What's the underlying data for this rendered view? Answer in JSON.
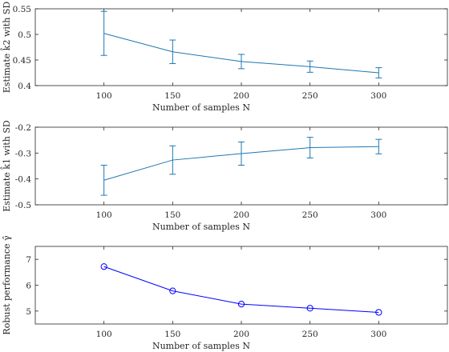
{
  "chart_data": [
    {
      "type": "line",
      "xlabel": "Number of samples N",
      "ylabel": "Estimate k̂2 with SD",
      "xlim": [
        50,
        350
      ],
      "ylim": [
        0.4,
        0.55
      ],
      "xticks": [
        100,
        150,
        200,
        250,
        300
      ],
      "yticks": [
        0.4,
        0.45,
        0.5,
        0.55
      ],
      "ytick_labels": [
        "0.4",
        "0.45",
        "0.5",
        "0.55"
      ],
      "x": [
        100,
        150,
        200,
        250,
        300
      ],
      "y": [
        0.502,
        0.466,
        0.447,
        0.437,
        0.425
      ],
      "sd": [
        0.043,
        0.023,
        0.014,
        0.011,
        0.01
      ],
      "errorbars": true,
      "marker": "none",
      "color": "#1f77b4",
      "grid": false,
      "legend": "none"
    },
    {
      "type": "line",
      "xlabel": "Number of samples N",
      "ylabel": "Estimate k̂1 with SD",
      "xlim": [
        50,
        350
      ],
      "ylim": [
        -0.5,
        -0.2
      ],
      "xticks": [
        100,
        150,
        200,
        250,
        300
      ],
      "yticks": [
        -0.5,
        -0.4,
        -0.3,
        -0.2
      ],
      "ytick_labels": [
        "-0.5",
        "-0.4",
        "-0.3",
        "-0.2"
      ],
      "x": [
        100,
        150,
        200,
        250,
        300
      ],
      "y": [
        -0.405,
        -0.327,
        -0.302,
        -0.279,
        -0.275
      ],
      "sd": [
        0.058,
        0.055,
        0.045,
        0.04,
        0.028
      ],
      "errorbars": true,
      "marker": "none",
      "color": "#1f77b4",
      "grid": false,
      "legend": "none"
    },
    {
      "type": "line",
      "xlabel": "Number of samples N",
      "ylabel": "Robust performance γ̂",
      "xlim": [
        50,
        350
      ],
      "ylim": [
        4.5,
        7.5
      ],
      "xticks": [
        100,
        150,
        200,
        250,
        300
      ],
      "yticks": [
        5,
        6,
        7
      ],
      "ytick_labels": [
        "5",
        "6",
        "7"
      ],
      "x": [
        100,
        150,
        200,
        250,
        300
      ],
      "y": [
        6.72,
        5.78,
        5.27,
        5.11,
        4.95
      ],
      "errorbars": false,
      "marker": "circle",
      "color": "#0000ff",
      "grid": false,
      "legend": "none"
    }
  ]
}
